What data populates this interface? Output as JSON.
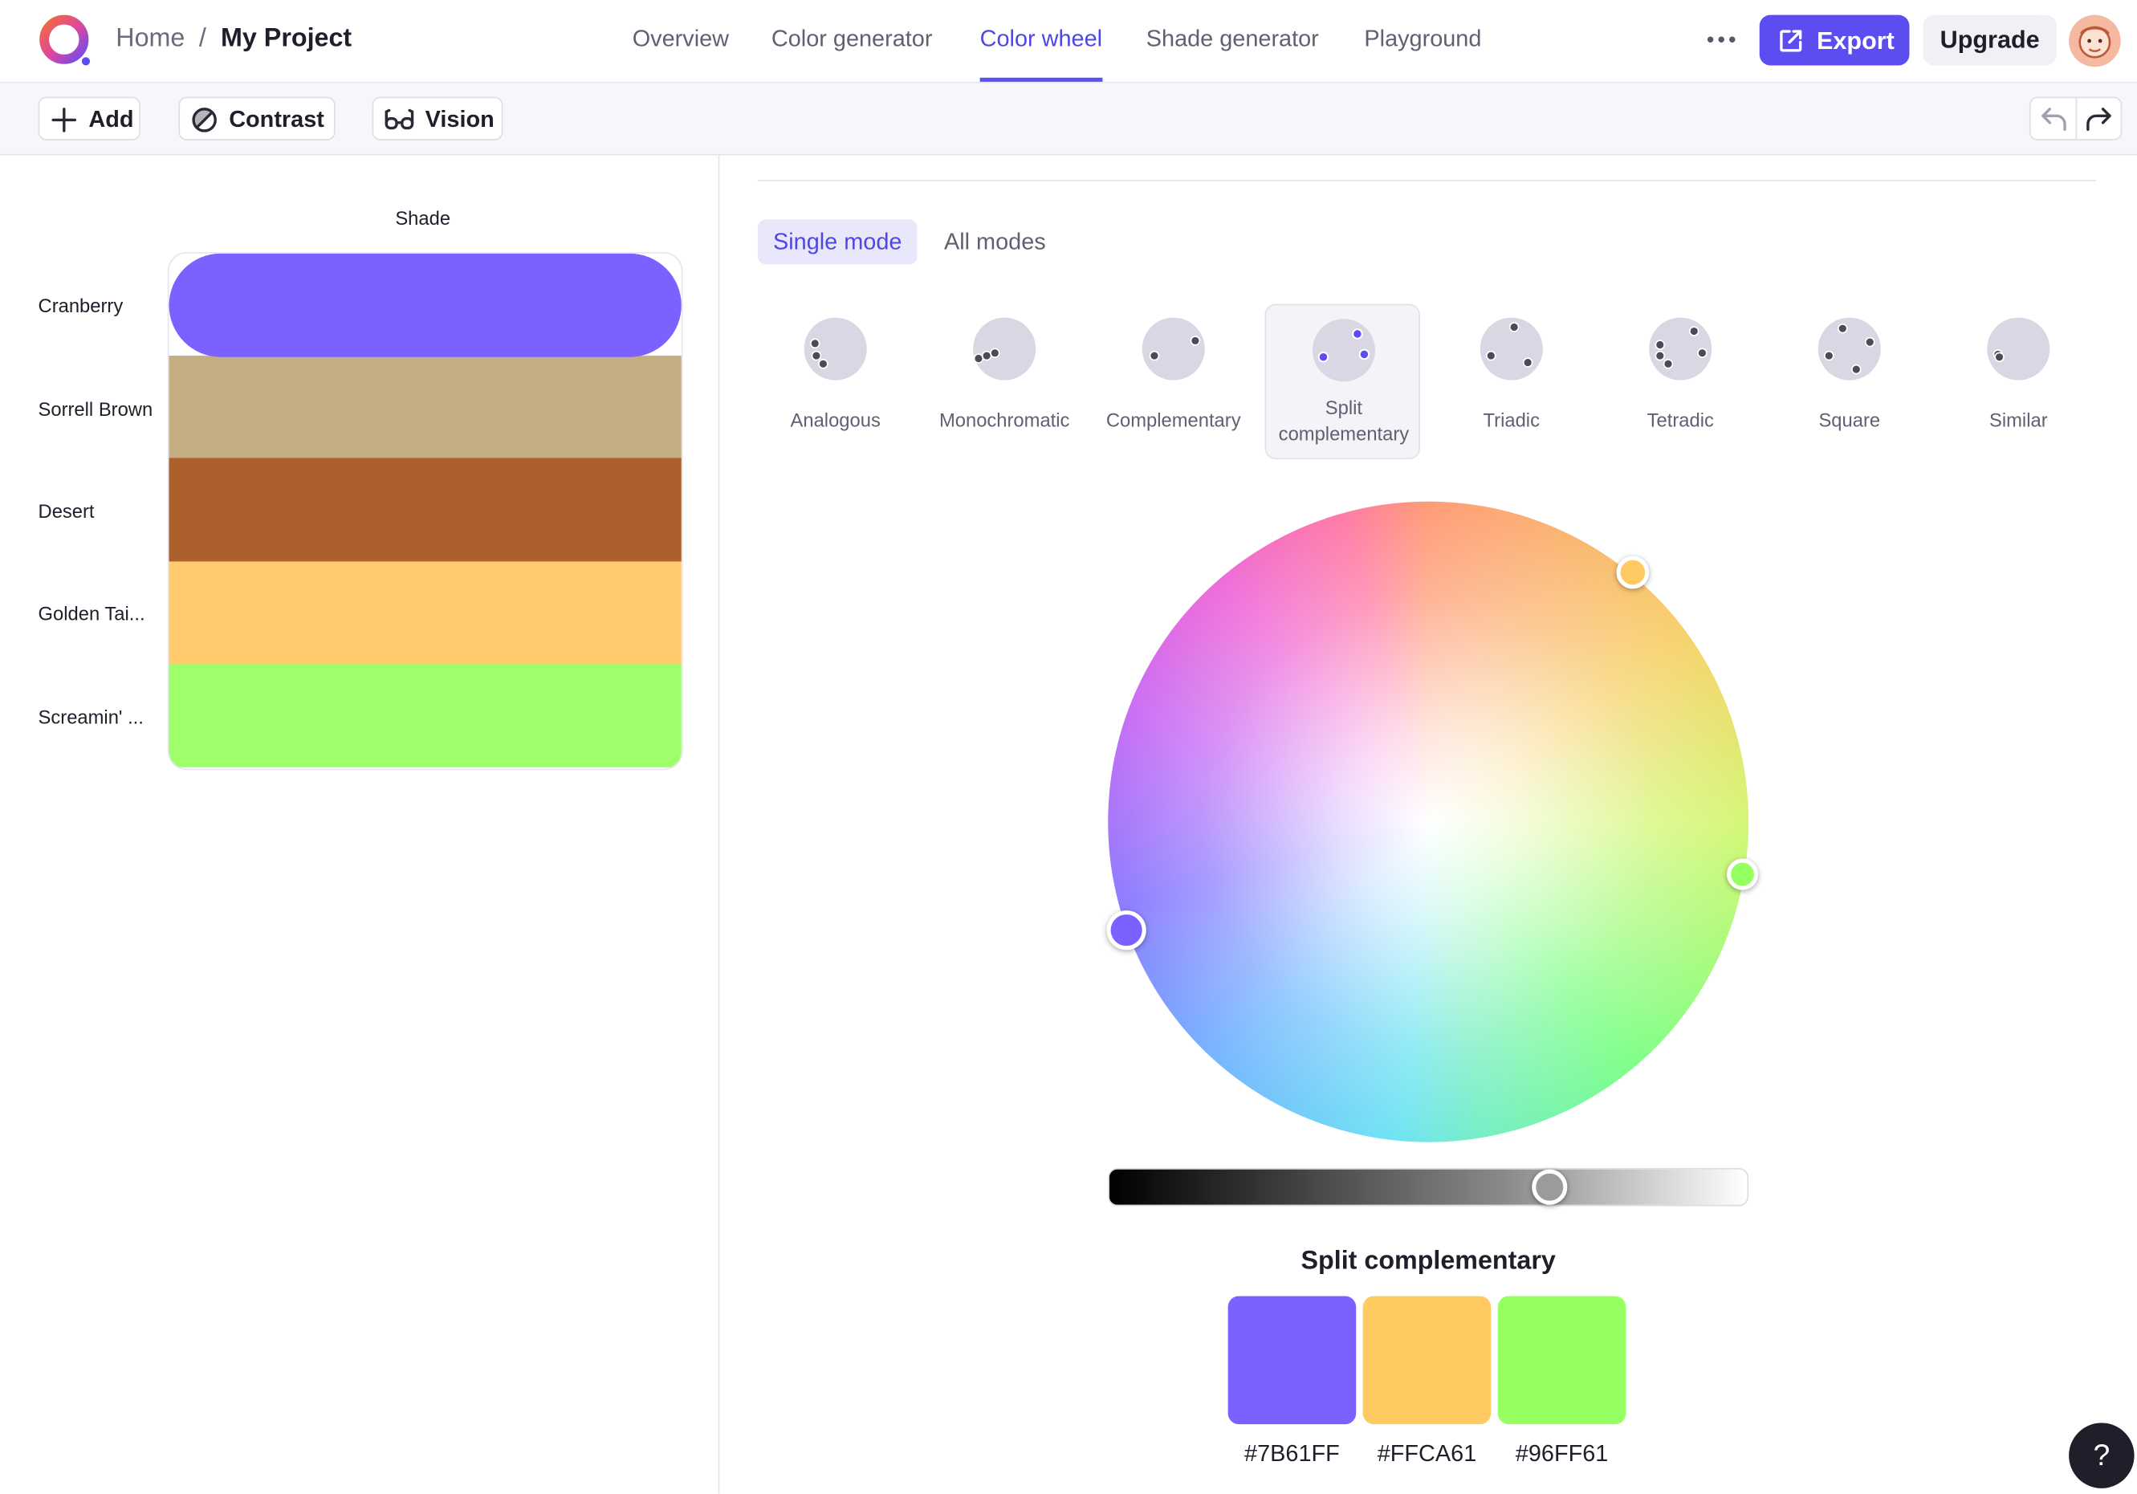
{
  "header": {
    "breadcrumb_home": "Home",
    "breadcrumb_sep": "/",
    "project_name": "My Project",
    "nav": [
      "Overview",
      "Color generator",
      "Color wheel",
      "Shade generator",
      "Playground"
    ],
    "active_nav": "Color wheel",
    "export_label": "Export",
    "upgrade_label": "Upgrade",
    "more_icon": "more-horizontal-icon"
  },
  "toolbar": {
    "add_label": "Add",
    "contrast_label": "Contrast",
    "vision_label": "Vision",
    "undo_icon": "undo-icon",
    "redo_icon": "redo-icon"
  },
  "palette": {
    "column_header": "Shade",
    "colors": [
      {
        "name": "Cranberry",
        "hex": "#7B61FF"
      },
      {
        "name": "Sorrell Brown",
        "hex": "#C4AD80"
      },
      {
        "name": "Desert",
        "hex": "#AC602C"
      },
      {
        "name": "Golden Tai...",
        "hex": "#FFCA6B"
      },
      {
        "name": "Screamin' ...",
        "hex": "#9EFF6B"
      }
    ]
  },
  "modes": {
    "single": "Single mode",
    "all": "All modes",
    "selected": "Single mode"
  },
  "harmonies": {
    "selected": "Split complementary",
    "items": [
      {
        "label_lines": [
          "Analogous"
        ]
      },
      {
        "label_lines": [
          "Monochromatic"
        ]
      },
      {
        "label_lines": [
          "Complementary"
        ]
      },
      {
        "label_lines": [
          "Split",
          "complementary"
        ]
      },
      {
        "label_lines": [
          "Triadic"
        ]
      },
      {
        "label_lines": [
          "Tetradic"
        ]
      },
      {
        "label_lines": [
          "Square"
        ]
      },
      {
        "label_lines": [
          "Similar"
        ]
      }
    ]
  },
  "wheel": {
    "brightness": 0.69
  },
  "result": {
    "title": "Split complementary",
    "swatches": [
      {
        "hex": "#7B61FF"
      },
      {
        "hex": "#FFCA61"
      },
      {
        "hex": "#96FF61"
      }
    ]
  },
  "help_label": "?",
  "colors": {
    "accent": "#5B4DF0",
    "accent_text": "#4F46E5"
  }
}
